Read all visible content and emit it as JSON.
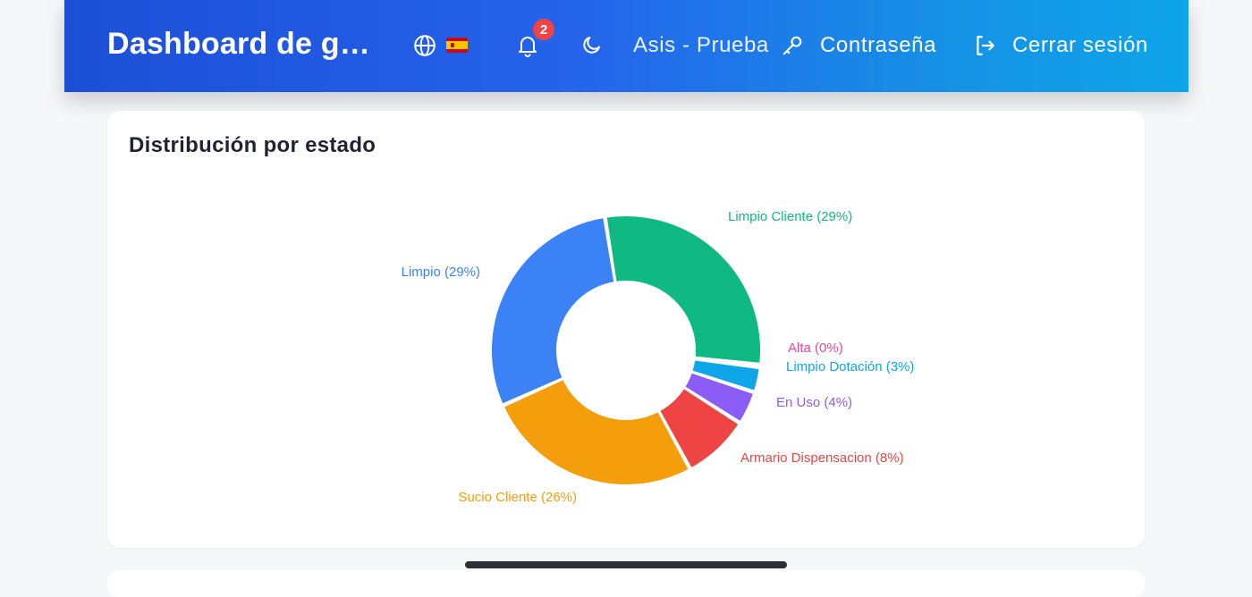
{
  "navbar": {
    "title": "Dashboard de gestión",
    "notification_count": "2",
    "user_label": "Asis - Prueba",
    "password_label": "Contraseña",
    "logout_label": "Cerrar sesión",
    "icons": [
      "globe-icon",
      "spain-flag-icon",
      "bell-icon",
      "moon-icon",
      "key-icon",
      "logout-icon"
    ]
  },
  "card": {
    "title": "Distribución por estado"
  },
  "chart_data": {
    "type": "pie",
    "donut": true,
    "title": "Distribución por estado",
    "slices": [
      {
        "label": "Limpio Cliente (29%)",
        "value": 29,
        "color": "#10b981"
      },
      {
        "label": "Alta (0%)",
        "value": 0.3,
        "color": "#ec4899"
      },
      {
        "label": "Limpio Dotación (3%)",
        "value": 3,
        "color": "#0ea5e9"
      },
      {
        "label": "En Uso (4%)",
        "value": 4,
        "color": "#8b5cf6"
      },
      {
        "label": "Armario Dispensacion (8%)",
        "value": 8,
        "color": "#ef4444"
      },
      {
        "label": "Sucio Cliente (26%)",
        "value": 26,
        "color": "#f59e0b"
      },
      {
        "label": "Limpio (29%)",
        "value": 29,
        "color": "#3b82f6"
      }
    ]
  }
}
